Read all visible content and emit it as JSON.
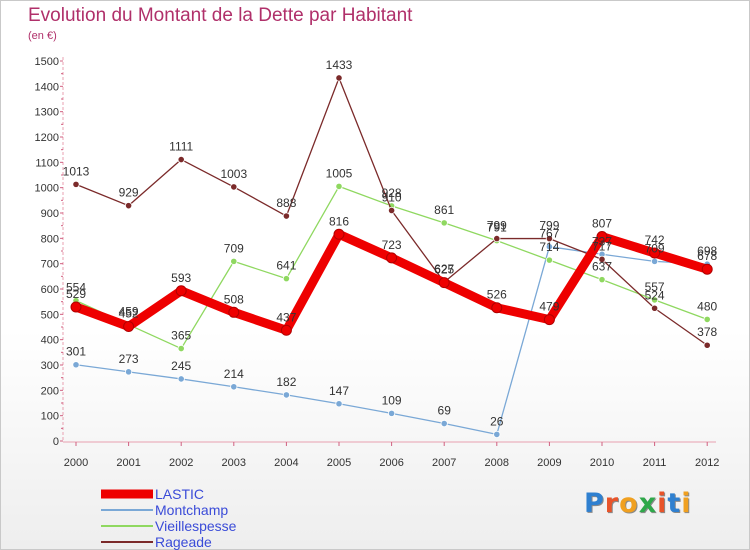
{
  "title": "Evolution du Montant de la Dette par Habitant",
  "unit": "(en €)",
  "logo_text": "Proxiti",
  "logo_colors": [
    "#2f80d0",
    "#e8542a",
    "#f0a020",
    "#2fa84a",
    "#e8542a",
    "#2f80d0",
    "#f0a020"
  ],
  "chart_data": {
    "type": "line",
    "title": "Evolution du Montant de la Dette par Habitant",
    "subtitle": "(en €)",
    "xlabel": "",
    "ylabel": "",
    "categories": [
      "2000",
      "2001",
      "2002",
      "2003",
      "2004",
      "2005",
      "2006",
      "2007",
      "2008",
      "2009",
      "2010",
      "2011",
      "2012"
    ],
    "ylim": [
      0,
      1500
    ],
    "yticks": [
      0,
      100,
      200,
      300,
      400,
      500,
      600,
      700,
      800,
      900,
      1000,
      1100,
      1200,
      1300,
      1400,
      1500
    ],
    "grid": false,
    "legend_position": "bottom-left",
    "series": [
      {
        "name": "Rageade",
        "color": "#7b2a2a",
        "values": [
          1013,
          929,
          1111,
          1003,
          888,
          1433,
          910,
          627,
          799,
          799,
          717,
          524,
          378
        ]
      },
      {
        "name": "Vieillespesse",
        "color": "#8fd860",
        "values": [
          554,
          459,
          365,
          709,
          641,
          1005,
          928,
          861,
          791,
          714,
          637,
          557,
          480
        ]
      },
      {
        "name": "Montchamp",
        "color": "#7aa8d6",
        "values": [
          301,
          273,
          245,
          214,
          182,
          147,
          109,
          69,
          26,
          767,
          737,
          709,
          698
        ]
      },
      {
        "name": "LASTIC",
        "color": "#ee0000",
        "values": [
          529,
          452,
          593,
          508,
          437,
          816,
          723,
          625,
          526,
          479,
          807,
          742,
          678
        ]
      }
    ],
    "data_labels": [
      {
        "series": "Rageade",
        "labels": [
          "1013",
          "929",
          "1111",
          "1003",
          "888",
          "1433",
          "910",
          "627",
          "799",
          "799",
          "717",
          "524",
          "378"
        ]
      },
      {
        "series": "Vieillespesse",
        "labels": [
          "554",
          "459",
          "365",
          "709",
          "641",
          "1005",
          "928",
          "861",
          "791",
          "714",
          "637",
          "557",
          "480"
        ]
      },
      {
        "series": "Montchamp",
        "labels": [
          "301",
          "273",
          "245",
          "214",
          "182",
          "147",
          "109",
          "69",
          "26",
          "767",
          "737",
          "709",
          "698"
        ]
      },
      {
        "series": "LASTIC",
        "labels": [
          "529",
          "452",
          "593",
          "508",
          "437",
          "816",
          "723",
          "625",
          "526",
          "479",
          "807",
          "742",
          "678"
        ]
      }
    ]
  },
  "legend": [
    {
      "name": "LASTIC",
      "color": "#ee0000"
    },
    {
      "name": "Montchamp",
      "color": "#7aa8d6"
    },
    {
      "name": "Vieillespesse",
      "color": "#8fd860"
    },
    {
      "name": "Rageade",
      "color": "#7b2a2a"
    }
  ]
}
